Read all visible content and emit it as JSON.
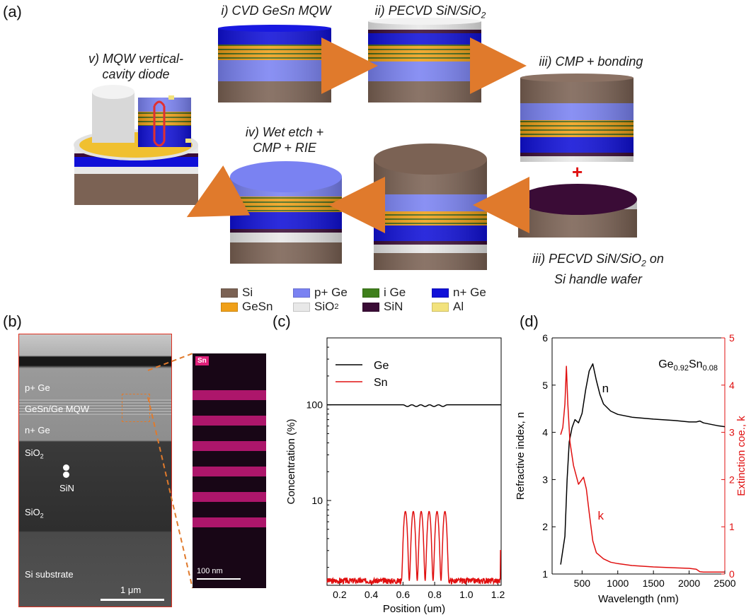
{
  "panel_labels": {
    "a": "(a)",
    "b": "(b)",
    "c": "(c)",
    "d": "(d)"
  },
  "steps": {
    "s1": "i) CVD GeSn MQW",
    "s2_main": "ii) PECVD SiN/SiO",
    "s2_sub": "2",
    "s3a": "iii) CMP + bonding",
    "s3b_line1_main": "iii) PECVD SiN/SiO",
    "s3b_line1_sub": "2",
    "s3b_line1_tail": " on",
    "s3b_line2": "Si handle wafer",
    "s4_line1": "iv) Wet etch +",
    "s4_line2": "CMP + RIE",
    "s5_line1": "v) MQW vertical-",
    "s5_line2": "cavity diode",
    "plus": "+"
  },
  "legend": [
    {
      "label": "Si",
      "sub": "",
      "color": "#7b6254"
    },
    {
      "label": "p+ Ge",
      "sub": "",
      "color": "#7a82f2"
    },
    {
      "label": "i Ge",
      "sub": "",
      "color": "#3f7f1b"
    },
    {
      "label": "n+ Ge",
      "sub": "",
      "color": "#1010d8"
    },
    {
      "label": "GeSn",
      "sub": "",
      "color": "#f0a018"
    },
    {
      "label": "SiO",
      "sub": "2",
      "color": "#e8e8e8"
    },
    {
      "label": "SiN",
      "sub": "",
      "color": "#3a0c36"
    },
    {
      "label": "Al",
      "sub": "",
      "color": "#f2e27c"
    }
  ],
  "sem": {
    "p_ge": "p+ Ge",
    "mqw": "GeSn/Ge MQW",
    "n_ge": "n+ Ge",
    "sio2_top": "SiO",
    "sio2_top_sub": "2",
    "sin": "SiN",
    "sio2_bot": "SiO",
    "sio2_bot_sub": "2",
    "si_sub": "Si substrate",
    "scale": "1 μm",
    "eds_tag": "Sn",
    "eds_scale": "100 nm"
  },
  "chart_data": [
    {
      "type": "line",
      "panel": "(c)",
      "xlabel": "Position (um)",
      "ylabel": "Concentration (%)",
      "xlim": [
        0.12,
        1.22
      ],
      "ylim": [
        1.3,
        500
      ],
      "yscale": "log",
      "xticks": [
        "0.2",
        "0.4",
        "0.6",
        "0.8",
        "1.0",
        "1.2"
      ],
      "yticks": [
        "10",
        "100"
      ],
      "legend_position": "top-left",
      "series": [
        {
          "name": "Ge",
          "color": "#000000",
          "baseline": 100,
          "wells": 5,
          "well_start": 0.6,
          "well_end": 0.88,
          "well_depth": 4
        },
        {
          "name": "Sn",
          "color": "#e01010",
          "baseline": 1.45,
          "wells": 6,
          "well_start": 0.6,
          "well_end": 0.88,
          "peak": 7.7
        }
      ]
    },
    {
      "type": "line",
      "panel": "(d)",
      "title": "Ge0.92Sn0.08",
      "title_main": "Ge",
      "title_sub1": "0.92",
      "title_mid": "Sn",
      "title_sub2": "0.08",
      "xlabel": "Wavelength (nm)",
      "ylabel_left": "Refractive index, n",
      "ylabel_right": "Extinction coe., k",
      "xlim": [
        80,
        2500
      ],
      "ylim_left": [
        1,
        6
      ],
      "ylim_right": [
        0,
        5
      ],
      "xticks": [
        "500",
        "1000",
        "1500",
        "2000",
        "2500"
      ],
      "yticks_left": [
        "1",
        "2",
        "3",
        "4",
        "5",
        "6"
      ],
      "yticks_right": [
        "0",
        "1",
        "2",
        "3",
        "4",
        "5"
      ],
      "series": [
        {
          "name": "n",
          "color": "#000000",
          "axis": "left",
          "x": [
            200,
            230,
            260,
            290,
            320,
            360,
            400,
            450,
            500,
            550,
            600,
            650,
            700,
            750,
            800,
            900,
            1000,
            1200,
            1500,
            1800,
            2000,
            2100,
            2150,
            2200,
            2300,
            2400,
            2500
          ],
          "y": [
            1.2,
            1.5,
            1.8,
            3.0,
            3.8,
            4.1,
            4.27,
            4.2,
            4.4,
            4.9,
            5.3,
            5.45,
            5.1,
            4.8,
            4.6,
            4.45,
            4.38,
            4.32,
            4.28,
            4.25,
            4.22,
            4.22,
            4.24,
            4.2,
            4.17,
            4.14,
            4.12
          ]
        },
        {
          "name": "k",
          "color": "#e01010",
          "axis": "right",
          "x": [
            200,
            230,
            260,
            280,
            300,
            330,
            380,
            450,
            520,
            560,
            600,
            650,
            700,
            800,
            900,
            1000,
            1200,
            1500,
            1800,
            2000,
            2100,
            2150,
            2200,
            2300,
            2500
          ],
          "y": [
            2.95,
            3.1,
            3.6,
            4.4,
            3.6,
            2.8,
            2.3,
            1.9,
            2.05,
            1.8,
            1.3,
            0.7,
            0.45,
            0.32,
            0.25,
            0.22,
            0.18,
            0.15,
            0.13,
            0.12,
            0.1,
            0.05,
            0.04,
            0.04,
            0.04
          ]
        }
      ],
      "curve_labels": {
        "n": "n",
        "k": "k"
      }
    }
  ]
}
